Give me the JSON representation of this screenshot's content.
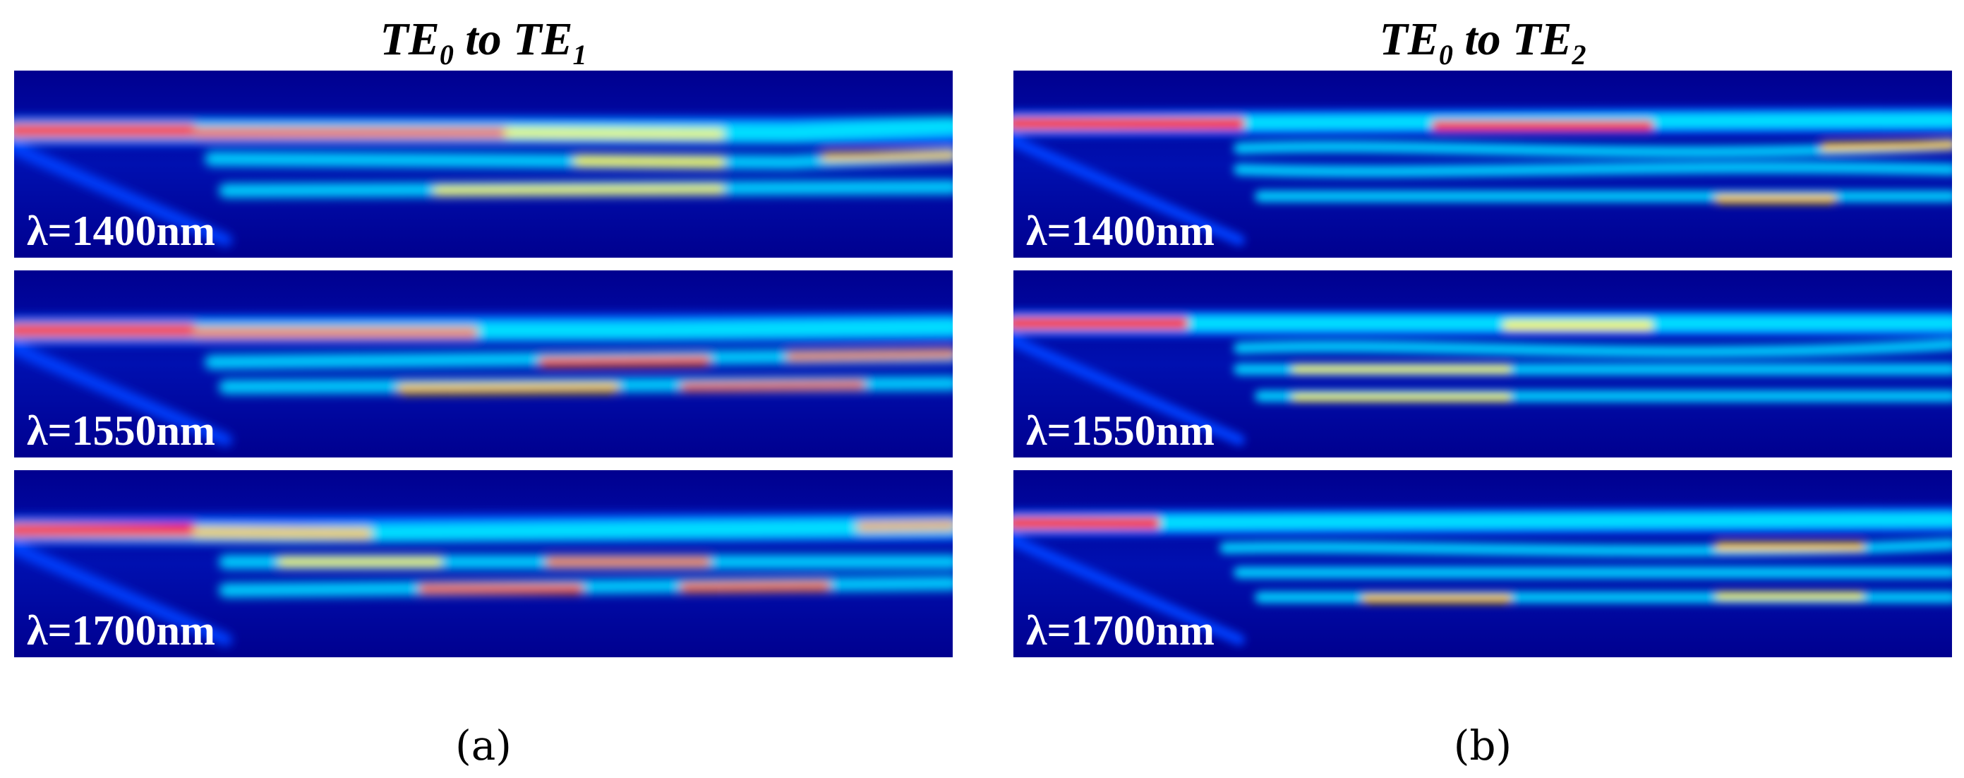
{
  "columns": [
    {
      "id": "a",
      "title_main_1": "TE",
      "title_sub_1": "0",
      "title_mid": " to ",
      "title_main_2": "TE",
      "title_sub_2": "1",
      "caption": "(a)",
      "panels": [
        {
          "wavelength_label": "λ=1400nm"
        },
        {
          "wavelength_label": "λ=1550nm"
        },
        {
          "wavelength_label": "λ=1700nm"
        }
      ]
    },
    {
      "id": "b",
      "title_main_1": "TE",
      "title_sub_1": "0",
      "title_mid": " to ",
      "title_main_2": "TE",
      "title_sub_2": "2",
      "caption": "(b)",
      "panels": [
        {
          "wavelength_label": "λ=1400nm"
        },
        {
          "wavelength_label": "λ=1550nm"
        },
        {
          "wavelength_label": "λ=1700nm"
        }
      ]
    }
  ],
  "colormap": {
    "background": "#00008f",
    "low": "#0040ff",
    "mid": "#00e0ff",
    "high": "#ffff00",
    "peak": "#ff0000"
  }
}
